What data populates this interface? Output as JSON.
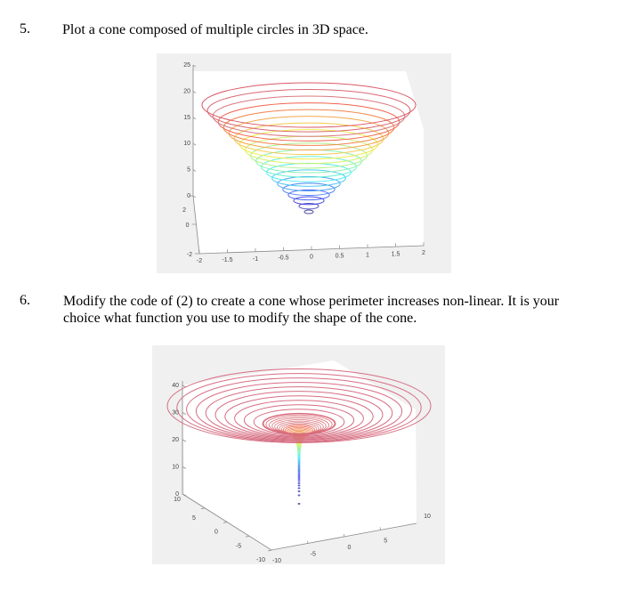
{
  "questions": [
    {
      "number": "5.",
      "text": "Plot a cone composed of multiple circles in 3D space."
    },
    {
      "number": "6.",
      "text_line1": "Modify the code of (2) to create a cone whose perimeter increases non-linear. It is your",
      "text_line2": "choice what function you use to modify the shape of the cone."
    }
  ],
  "chart_data": [
    {
      "type": "line",
      "title": "",
      "description": "3D linear cone made of stacked colored circles (jet colormap, blue at bottom to red at top)",
      "z_ticks": [
        "0",
        "5",
        "10",
        "15",
        "20",
        "25"
      ],
      "y_ticks": [
        "-2",
        "0",
        "2"
      ],
      "x_ticks": [
        "-2",
        "-1.5",
        "-1",
        "-0.5",
        "0",
        "0.5",
        "1",
        "1.5",
        "2"
      ],
      "xlim": [
        -2,
        2
      ],
      "ylim": [
        -2,
        2
      ],
      "zlim": [
        0,
        25
      ],
      "series": [
        {
          "name": "circles",
          "count": 20,
          "radius_range": [
            0.1,
            2
          ],
          "z_range": [
            1,
            20
          ],
          "colormap": "jet"
        }
      ]
    },
    {
      "type": "line",
      "title": "",
      "description": "3D non-linear cone (funnel) made of stacked colored circles; radius grows non-linearly with height",
      "z_ticks": [
        "0",
        "10",
        "20",
        "30",
        "40"
      ],
      "y_ticks": [
        "10",
        "5",
        "0",
        "-5",
        "-10"
      ],
      "x_ticks": [
        "-10",
        "-5",
        "0",
        "5",
        "10"
      ],
      "xlim": [
        -10,
        10
      ],
      "ylim": [
        -10,
        10
      ],
      "zlim": [
        0,
        40
      ],
      "series": [
        {
          "name": "circles",
          "radius_range": [
            0,
            10
          ],
          "z_range": [
            0,
            35
          ],
          "colormap": "jet"
        }
      ]
    }
  ]
}
